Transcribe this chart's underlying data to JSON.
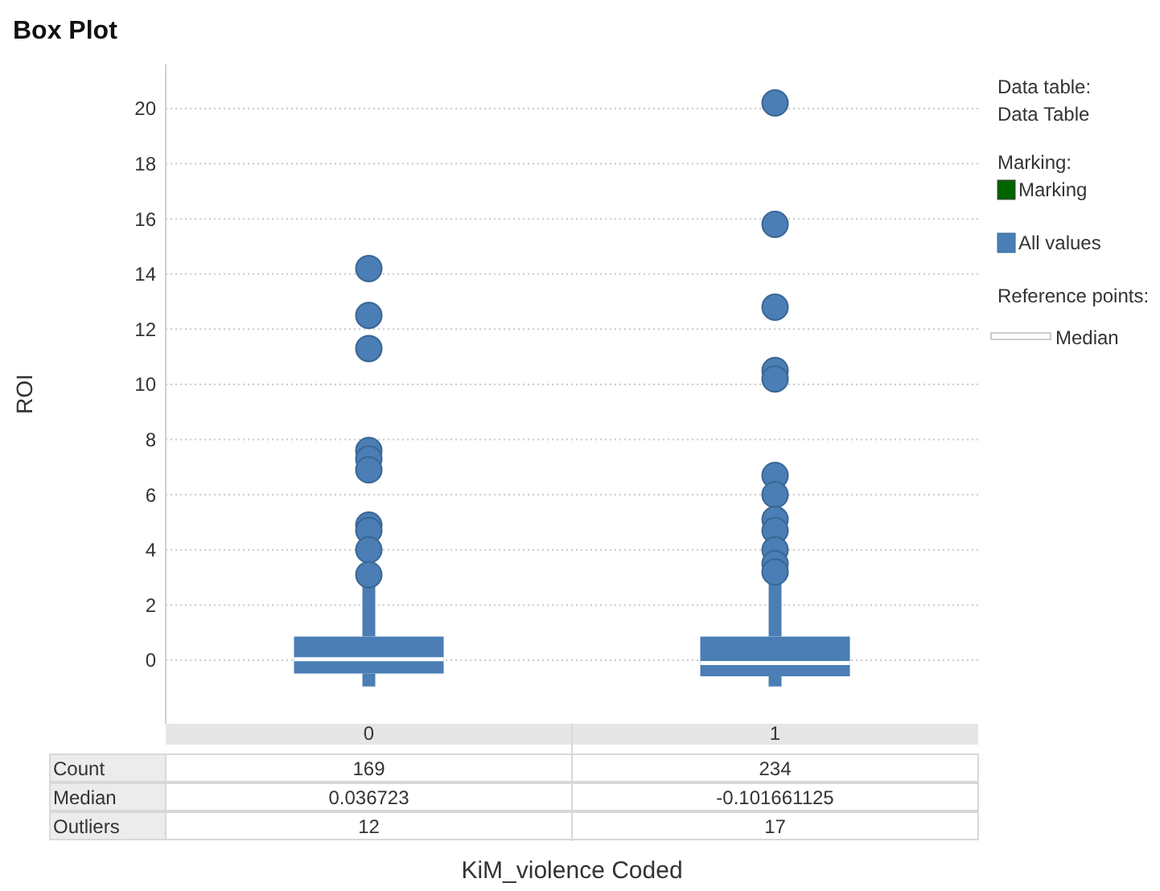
{
  "chart_data": {
    "type": "box",
    "title": "Box Plot",
    "xlabel": "KiM_violence Coded",
    "ylabel": "ROI",
    "categories": [
      "0",
      "1"
    ],
    "series": [
      {
        "name": "All values",
        "color": "#4a7eb5",
        "boxes": [
          {
            "low": -0.95,
            "q1": -0.48,
            "median": 0.036723,
            "q3": 0.86,
            "high": 2.9,
            "outliers": [
              14.2,
              12.5,
              11.3,
              7.6,
              7.3,
              6.9,
              4.9,
              4.7,
              4.0,
              3.1
            ]
          },
          {
            "low": -0.95,
            "q1": -0.58,
            "median": -0.101661125,
            "q3": 0.86,
            "high": 2.9,
            "outliers": [
              20.2,
              15.8,
              12.8,
              10.5,
              10.2,
              6.7,
              6.0,
              5.1,
              4.7,
              4.0,
              3.5,
              3.2
            ]
          }
        ]
      }
    ],
    "ylim": [
      -2.3,
      21.6
    ],
    "yticks": [
      0,
      2,
      4,
      6,
      8,
      10,
      12,
      14,
      16,
      18,
      20
    ],
    "grid": "y",
    "legend": "right",
    "annotations": [
      "Data table:",
      "Data Table",
      "Marking:",
      "Marking",
      "Reference points:",
      "Median",
      "Count",
      "169",
      "234",
      "Median",
      "0.036723",
      "-0.101661125",
      "Outliers",
      "12",
      "17"
    ]
  }
}
